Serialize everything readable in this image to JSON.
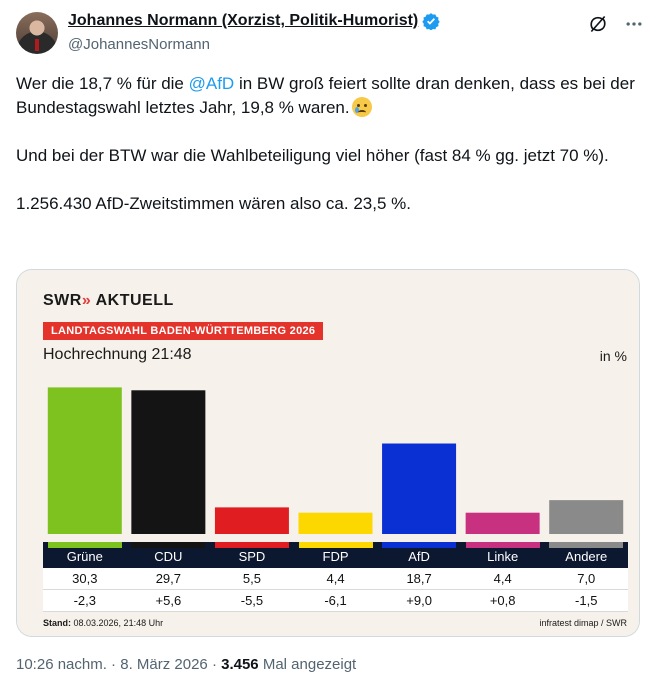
{
  "tweet": {
    "author": {
      "display_name": "Johannes Normann (Xorzist, Politik-Humorist)",
      "handle": "@JohannesNormann"
    },
    "icons": {
      "verified": "verified-badge-icon",
      "grok": "grok-icon",
      "more": "more-icon"
    },
    "paragraphs": {
      "p1_a": "Wer die 18,7 % für die ",
      "p1_mention": "@AfD",
      "p1_b": " in BW groß feiert sollte dran denken, dass es bei der Bundestagswahl letztes Jahr, 19,8 % waren.",
      "p2": "Und bei der BTW war die Wahlbeteiligung viel höher (fast 84 % gg. jetzt 70 %).",
      "p3": "1.256.430 AfD-Zweitstimmen wären also ca. 23,5 %."
    },
    "timestamp": "10:26 nachm. · 8. März 2026 · ",
    "views_count": "3.456",
    "views_label": " Mal angezeigt"
  },
  "graphic": {
    "logo": "SWR",
    "logo_suffix": "AKTUELL",
    "banner": "LANDTAGSWAHL BADEN-WÜRTTEMBERG 2026",
    "subtitle": "Hochrechnung 21:48",
    "unit": "in %",
    "footer_label": "Stand:",
    "footer_date": "08.03.2026, 21:48 Uhr",
    "footer_source": "infratest dimap / SWR"
  },
  "chart_data": {
    "type": "bar",
    "title": "Hochrechnung 21:48",
    "ylabel": "in %",
    "categories": [
      "Grüne",
      "CDU",
      "SPD",
      "FDP",
      "AfD",
      "Linke",
      "Andere"
    ],
    "values": [
      30.3,
      29.7,
      5.5,
      4.4,
      18.7,
      4.4,
      7.0
    ],
    "value_labels": [
      "30,3",
      "29,7",
      "5,5",
      "4,4",
      "18,7",
      "4,4",
      "7,0"
    ],
    "diff_labels": [
      "-2,3",
      "+5,6",
      "-5,5",
      "-6,1",
      "+9,0",
      "+0,8",
      "-1,5"
    ],
    "colors": [
      "#7dc21e",
      "#141414",
      "#e01d20",
      "#fcd800",
      "#0a2fd2",
      "#c8317f",
      "#8a8a8a"
    ],
    "ylim": [
      0,
      31
    ],
    "grid": false,
    "legend": "none"
  }
}
